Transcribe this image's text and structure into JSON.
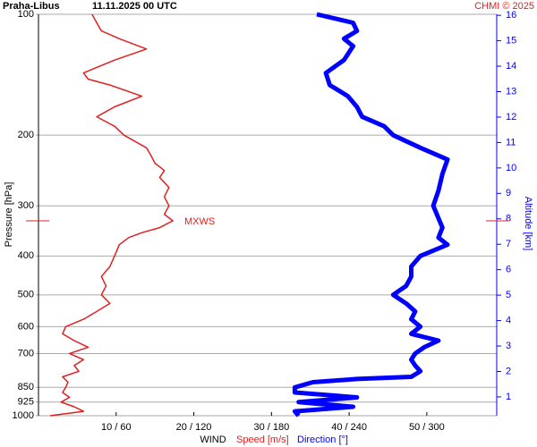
{
  "chart_data": {
    "type": "profile",
    "title": "Praha-Libus",
    "subtitle": "11.11.2025 00 UTC",
    "credit": "CHMI © 2025",
    "y_label": "Pressure [hPa]",
    "y2_label": "Altitude [km]",
    "x_label": "WIND",
    "log_y": true,
    "ylim": [
      100,
      1000
    ],
    "yticks": [
      100,
      200,
      300,
      400,
      500,
      600,
      700,
      850,
      925,
      1000
    ],
    "y2lim": [
      0.26,
      16.04
    ],
    "y2ticks": [
      1,
      2,
      3,
      4,
      5,
      6,
      7,
      8,
      9,
      10,
      11,
      12,
      13,
      14,
      15,
      16
    ],
    "xlim": [
      0,
      59
    ],
    "x2lim": [
      0,
      354
    ],
    "xticks": [
      {
        "value": 10,
        "label": "10 / 60"
      },
      {
        "value": 20,
        "label": "20 / 120"
      },
      {
        "value": 30,
        "label": "30 / 180"
      },
      {
        "value": 40,
        "label": "40 / 240"
      },
      {
        "value": 50,
        "label": "50 / 300"
      }
    ],
    "max_wind": {
      "label": "MXWS",
      "pressure": 327,
      "color": "#e02020"
    },
    "series": [
      {
        "name": "Speed [m/s]",
        "color": "#e02020",
        "axis": "x",
        "pressure": [
          1000,
          975,
          950,
          925,
          900,
          875,
          850,
          825,
          800,
          775,
          750,
          725,
          700,
          675,
          650,
          625,
          600,
          575,
          550,
          525,
          500,
          475,
          450,
          425,
          400,
          375,
          360,
          350,
          340,
          327,
          315,
          300,
          285,
          270,
          255,
          245,
          235,
          225,
          215,
          200,
          190,
          180,
          170,
          160,
          150,
          145,
          140,
          130,
          122,
          115,
          110,
          105,
          100
        ],
        "values": [
          1.5,
          5.8,
          4.6,
          2.9,
          4,
          3.1,
          3.5,
          3.8,
          3.1,
          5.2,
          4.6,
          5.8,
          4,
          6.4,
          4.6,
          3.1,
          3.5,
          5.8,
          7.5,
          9.2,
          8.1,
          8.7,
          8.1,
          9.2,
          9.8,
          10.4,
          11.6,
          13.3,
          15.6,
          17.3,
          16.2,
          16.8,
          16.2,
          16.8,
          15.6,
          16.2,
          15,
          14.5,
          13.9,
          11,
          9.8,
          7.5,
          9.8,
          13.3,
          9.2,
          6.4,
          5.8,
          9.8,
          13.9,
          10.4,
          8.1,
          7.5,
          6.9
        ]
      },
      {
        "name": "Direction [°]",
        "color": "#0000ff",
        "axis": "x2",
        "pressure": [
          1000,
          975,
          950,
          925,
          900,
          875,
          850,
          825,
          810,
          800,
          775,
          750,
          725,
          700,
          675,
          650,
          625,
          600,
          575,
          550,
          525,
          500,
          475,
          450,
          425,
          400,
          375,
          360,
          340,
          300,
          275,
          250,
          230,
          215,
          200,
          190,
          180,
          170,
          160,
          150,
          140,
          130,
          120,
          115,
          110,
          105,
          100
        ],
        "values": [
          201,
          198,
          243,
          201,
          246,
          198,
          198,
          212,
          246,
          288,
          295,
          291,
          288,
          291,
          298,
          309,
          288,
          295,
          288,
          291,
          284,
          274,
          284,
          288,
          288,
          295,
          316,
          309,
          312,
          305,
          309,
          312,
          316,
          295,
          274,
          267,
          250,
          246,
          239,
          225,
          222,
          236,
          243,
          236,
          246,
          243,
          215
        ]
      }
    ]
  }
}
